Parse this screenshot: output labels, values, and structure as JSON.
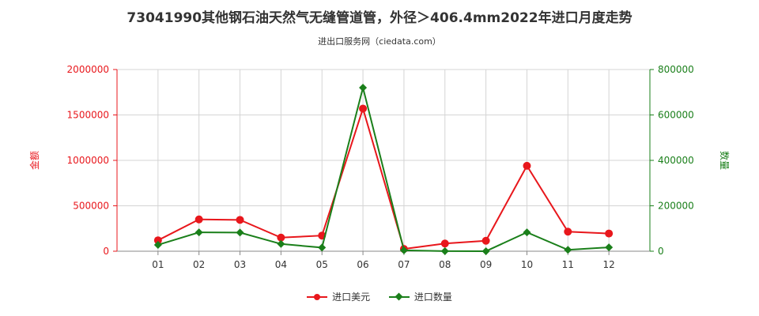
{
  "header": {
    "title": "73041990其他钢石油天然气无缝管道管，外径＞406.4mm2022年进口月度走势",
    "subtitle": "进出口服务网（ciedata.com）"
  },
  "chart_data": {
    "type": "line",
    "categories": [
      "01",
      "02",
      "03",
      "04",
      "05",
      "06",
      "07",
      "08",
      "09",
      "10",
      "11",
      "12"
    ],
    "series": [
      {
        "name": "进口美元",
        "axis": "left",
        "color": "#e8171c",
        "values": [
          120000,
          350000,
          345000,
          150000,
          172000,
          1570000,
          25000,
          85000,
          115000,
          940000,
          215000,
          195000
        ]
      },
      {
        "name": "进口数量",
        "axis": "right",
        "color": "#1a7f1a",
        "values": [
          28000,
          83000,
          82000,
          32000,
          16000,
          720000,
          4000,
          500,
          200,
          83000,
          6000,
          17000
        ]
      }
    ],
    "left_axis": {
      "label": "金额",
      "ylim": [
        0,
        2000000
      ],
      "ticks": [
        "0",
        "500000",
        "1000000",
        "1500000",
        "2000000"
      ],
      "color": "#e8171c"
    },
    "right_axis": {
      "label": "数量",
      "ylim": [
        0,
        800000
      ],
      "ticks": [
        "0",
        "200000",
        "400000",
        "600000",
        "800000"
      ],
      "color": "#1a7f1a"
    },
    "grid": true,
    "legend_position": "bottom"
  }
}
